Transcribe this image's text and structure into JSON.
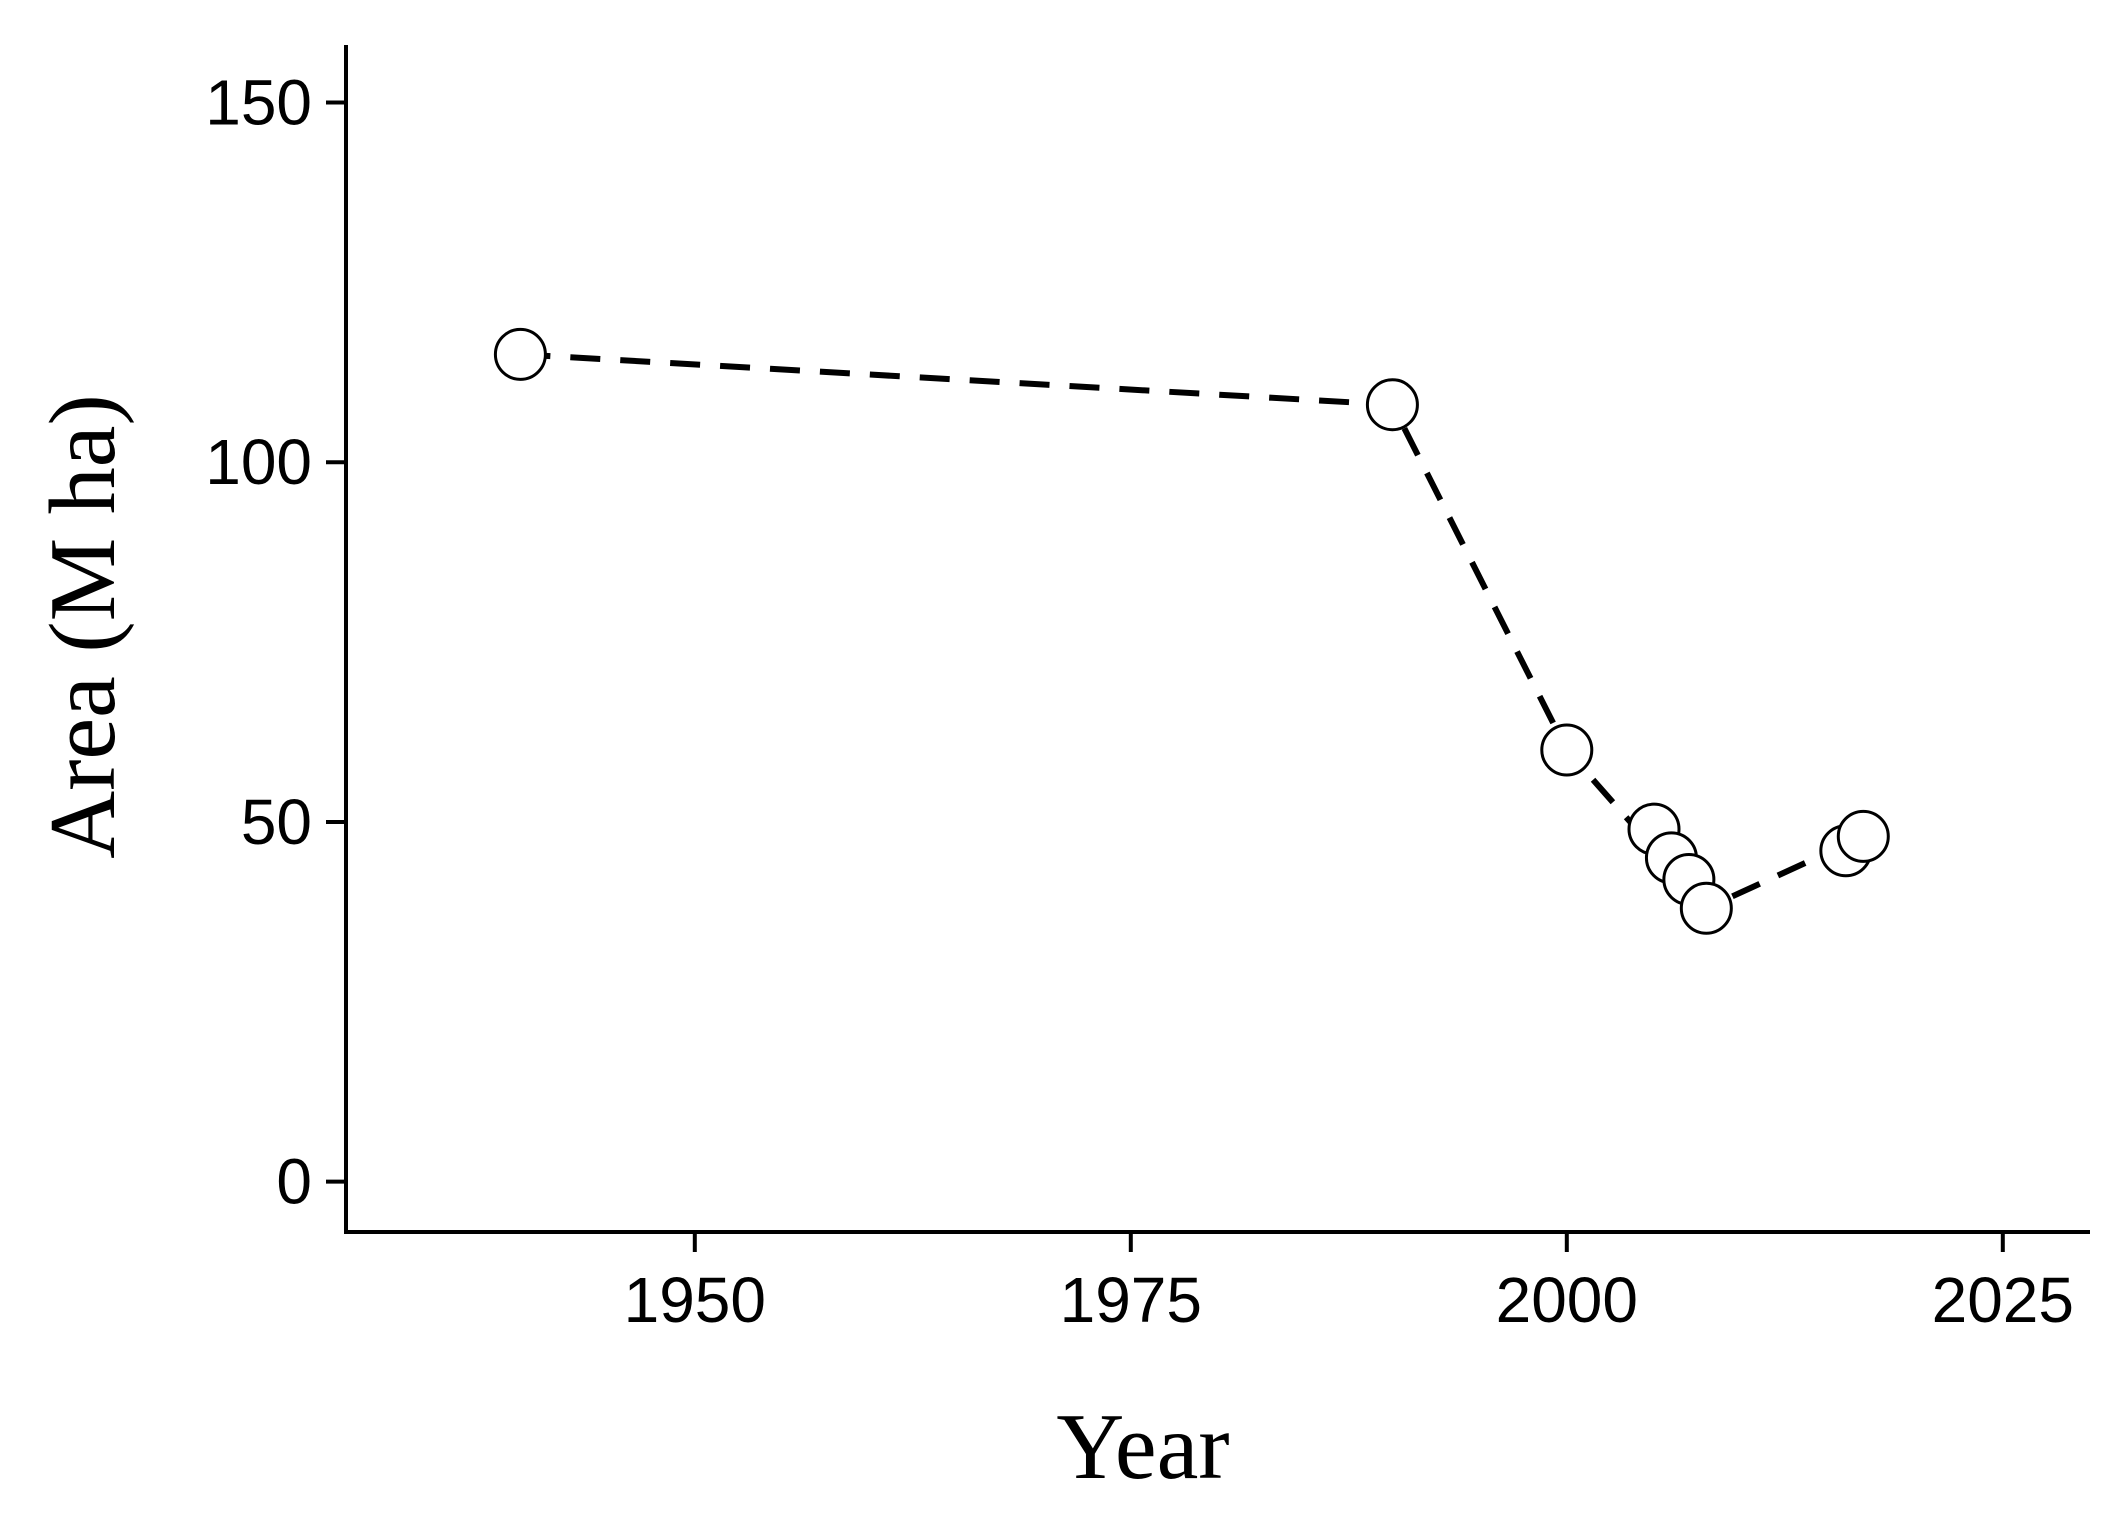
{
  "colors": {
    "background": "#ffffff",
    "ink": "#000000",
    "marker_fill": "#ffffff"
  },
  "chart_data": {
    "type": "scatter",
    "title": "",
    "xlabel": "Year",
    "ylabel": "Area (M ha)",
    "xlim": [
      1930,
      2030
    ],
    "ylim": [
      -7,
      158
    ],
    "xticks": [
      1950,
      1975,
      2000,
      2025
    ],
    "yticks": [
      0,
      50,
      100,
      150
    ],
    "grid": false,
    "legend": "none",
    "series": [
      {
        "x": [
          1940,
          1990,
          2000,
          2005,
          2006,
          2007,
          2008,
          2016,
          2017
        ],
        "y": [
          115,
          108,
          60,
          49,
          45,
          42,
          38,
          46,
          48
        ]
      }
    ],
    "trend_line": {
      "style": "dashed",
      "x": [
        1940,
        1990,
        2000,
        2008,
        2017
      ],
      "y": [
        115,
        108,
        60,
        38,
        48
      ]
    }
  }
}
